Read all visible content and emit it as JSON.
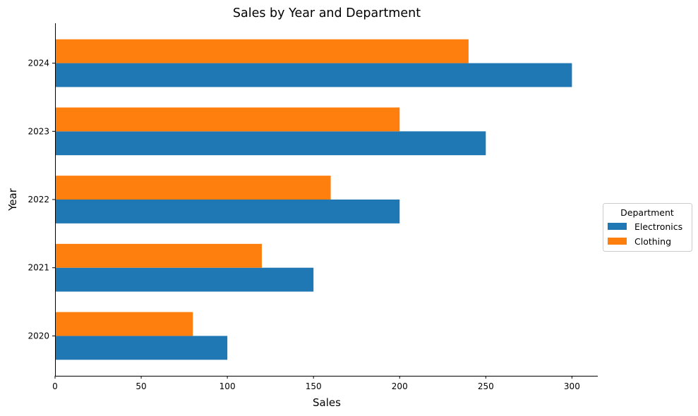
{
  "chart_data": {
    "type": "bar",
    "orientation": "horizontal",
    "title": "Sales by Year and Department",
    "xlabel": "Sales",
    "ylabel": "Year",
    "categories": [
      "2020",
      "2021",
      "2022",
      "2023",
      "2024"
    ],
    "series": [
      {
        "name": "Electronics",
        "color": "#1f77b4",
        "values": [
          100,
          150,
          200,
          250,
          300
        ]
      },
      {
        "name": "Clothing",
        "color": "#ff7f0e",
        "values": [
          80,
          120,
          160,
          200,
          240
        ]
      }
    ],
    "xlim": [
      0,
      315
    ],
    "xticks": [
      0,
      50,
      100,
      150,
      200,
      250,
      300
    ],
    "grid": false,
    "legend": {
      "title": "Department",
      "placement": "center-right"
    }
  }
}
